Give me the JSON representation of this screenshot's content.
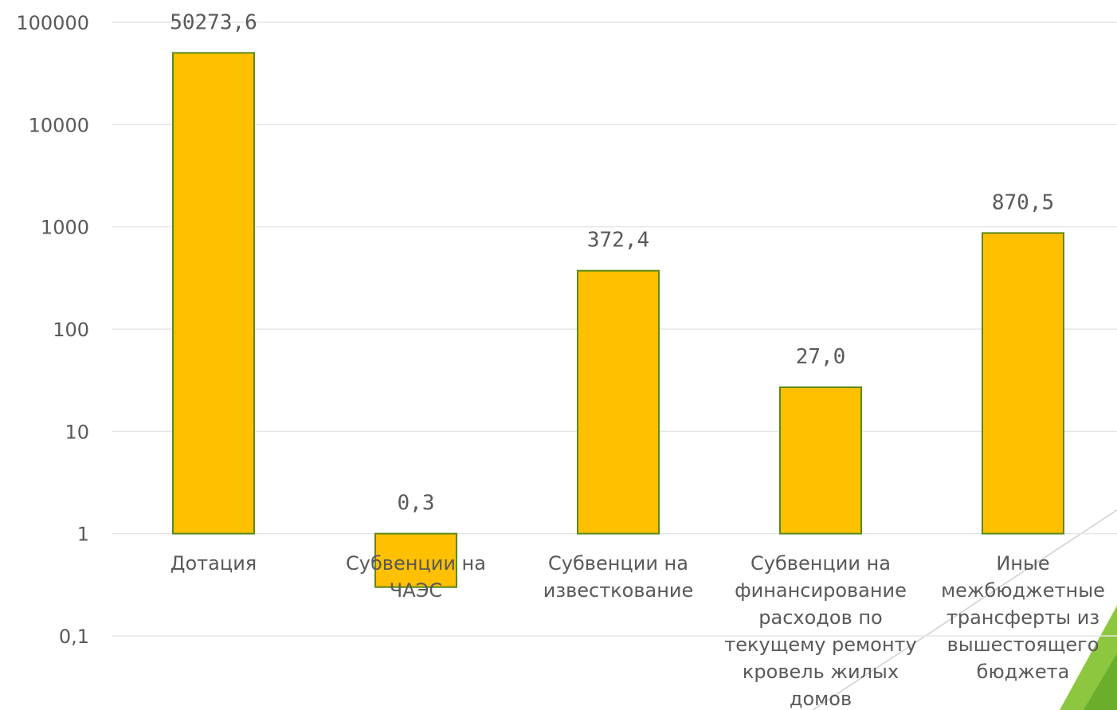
{
  "chart_data": {
    "type": "bar",
    "scale": "log",
    "ylim": [
      0.1,
      100000
    ],
    "grid": true,
    "legend": "none",
    "y_ticks": [
      "0,1",
      "1",
      "10",
      "100",
      "1000",
      "10000",
      "100000"
    ],
    "y_tick_values": [
      0.1,
      1,
      10,
      100,
      1000,
      10000,
      100000
    ],
    "categories": [
      [
        "Дотация"
      ],
      [
        "Субвенции на",
        "ЧАЭС"
      ],
      [
        "Субвенции на",
        "известкование"
      ],
      [
        "Субвенции на",
        "финансирование",
        "расходов по",
        "текущему ремонту",
        "кровель жилых",
        "домов"
      ],
      [
        "Иные",
        "межбюджетные",
        "трансферты из",
        "вышестоящего",
        "бюджета"
      ]
    ],
    "values": [
      50273.6,
      0.3,
      372.4,
      27.0,
      870.5
    ],
    "value_labels": [
      "50273,6",
      "0,3",
      "372,4",
      "27,0",
      "870,5"
    ],
    "colors": {
      "bar_fill": "#FFC000",
      "bar_stroke": "#5A8A1A",
      "text": "#595959",
      "grid": "#E6E6E6",
      "accent": "#8DC63F"
    }
  }
}
